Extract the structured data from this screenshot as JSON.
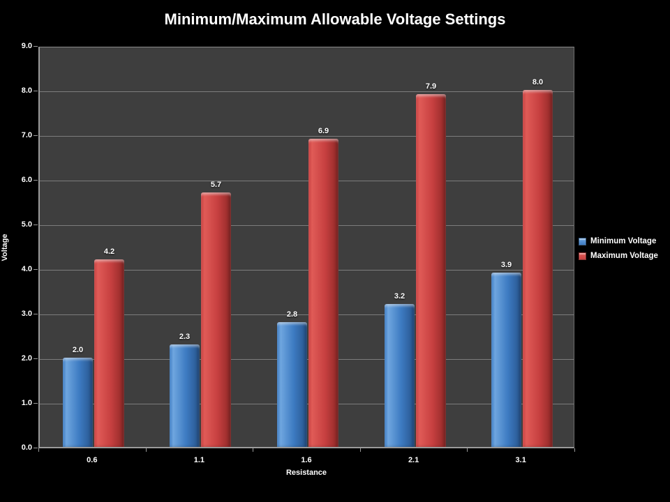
{
  "title": "Minimum/Maximum Allowable Voltage Settings",
  "chart_data": {
    "type": "bar",
    "title": "Minimum/Maximum Allowable Voltage Settings",
    "xlabel": "Resistance",
    "ylabel": "Voltage",
    "categories": [
      "0.6",
      "1.1",
      "1.6",
      "2.1",
      "3.1"
    ],
    "series": [
      {
        "name": "Minimum Voltage",
        "values": [
          2.0,
          2.3,
          2.8,
          3.2,
          3.9
        ],
        "color": "#3D7BC2",
        "color_light": "#6FA6DF",
        "color_dark": "#27548C"
      },
      {
        "name": "Maximum Voltage",
        "values": [
          4.2,
          5.7,
          6.9,
          7.9,
          8.0
        ],
        "color": "#C74040",
        "color_light": "#E05B57",
        "color_dark": "#8F2827"
      }
    ],
    "ylim": [
      0,
      9
    ],
    "ytick_step": 1,
    "ytick_labels": [
      "0.0",
      "1.0",
      "2.0",
      "3.0",
      "4.0",
      "5.0",
      "6.0",
      "7.0",
      "8.0",
      "9.0"
    ],
    "data_label_decimals": 1,
    "grid": true,
    "legend_position": "right"
  },
  "colors": {
    "background": "#000000",
    "plot_background": "#3E3E3E",
    "gridline": "#7D7D7D",
    "axis_line": "#9B9B9B",
    "text": "#FFFFFF"
  }
}
